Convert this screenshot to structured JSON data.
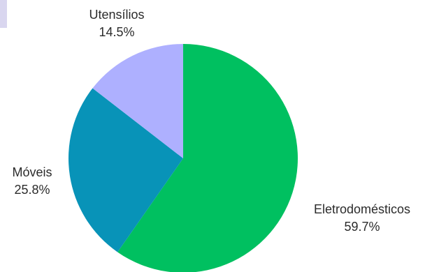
{
  "chart_data": {
    "type": "pie",
    "slices": [
      {
        "label": "Eletrodomésticos",
        "value": 59.7,
        "percent_label": "59.7%",
        "color": "#00c060"
      },
      {
        "label": "Móveis",
        "value": 25.8,
        "percent_label": "25.8%",
        "color": "#0893b8"
      },
      {
        "label": "Utensílios",
        "value": 14.5,
        "percent_label": "14.5%",
        "color": "#aeb0ff"
      }
    ],
    "start_angle": "top",
    "direction": "clockwise",
    "legend": "none",
    "accent_tab_color": "#d9d6ef"
  }
}
